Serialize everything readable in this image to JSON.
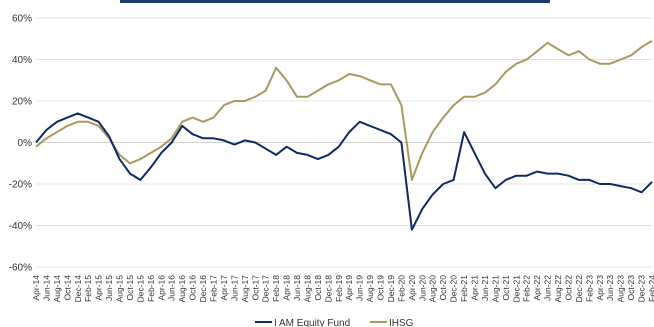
{
  "chart_data": {
    "type": "line",
    "title": "",
    "xlabel": "",
    "ylabel": "",
    "ylim": [
      -60,
      60
    ],
    "y_ticks": [
      "60%",
      "40%",
      "20%",
      "0%",
      "-20%",
      "-40%",
      "-60%"
    ],
    "grid": true,
    "legend_position": "bottom-center",
    "x": [
      "Apr-14",
      "Jun-14",
      "Aug-14",
      "Oct-14",
      "Dec-14",
      "Feb-15",
      "Apr-15",
      "Jun-15",
      "Aug-15",
      "Oct-15",
      "Dec-15",
      "Feb-16",
      "Apr-16",
      "Jun-16",
      "Aug-16",
      "Oct-16",
      "Dec-16",
      "Feb-17",
      "Apr-17",
      "Jun-17",
      "Aug-17",
      "Oct-17",
      "Dec-17",
      "Feb-18",
      "Apr-18",
      "Jun-18",
      "Aug-18",
      "Oct-18",
      "Dec-18",
      "Feb-19",
      "Apr-19",
      "Jun-19",
      "Aug-19",
      "Oct-19",
      "Dec-19",
      "Feb-20",
      "Apr-20",
      "Jun-20",
      "Aug-20",
      "Oct-20",
      "Dec-20",
      "Feb-21",
      "Apr-21",
      "Jun-21",
      "Aug-21",
      "Oct-21",
      "Dec-21",
      "Feb-22",
      "Apr-22",
      "Jun-22",
      "Aug-22",
      "Oct-22",
      "Dec-22",
      "Feb-23",
      "Apr-23",
      "Jun-23",
      "Aug-23",
      "Oct-23",
      "Dec-23",
      "Feb-24"
    ],
    "series": [
      {
        "name": "I AM Equity Fund",
        "color": "#0f2a66",
        "values": [
          0,
          6,
          10,
          12,
          14,
          12,
          10,
          3,
          -8,
          -15,
          -18,
          -12,
          -5,
          0,
          8,
          4,
          2,
          2,
          1,
          -1,
          1,
          0,
          -3,
          -6,
          -2,
          -5,
          -6,
          -8,
          -6,
          -2,
          5,
          10,
          8,
          6,
          4,
          0,
          -42,
          -32,
          -25,
          -20,
          -18,
          5,
          -5,
          -15,
          -22,
          -18,
          -16,
          -16,
          -14,
          -15,
          -15,
          -16,
          -18,
          -18,
          -20,
          -20,
          -21,
          -22,
          -24,
          -19
        ]
      },
      {
        "name": "IHSG",
        "color": "#a89a5e",
        "values": [
          -2,
          2,
          5,
          8,
          10,
          10,
          8,
          2,
          -6,
          -10,
          -8,
          -5,
          -2,
          2,
          10,
          12,
          10,
          12,
          18,
          20,
          20,
          22,
          25,
          36,
          30,
          22,
          22,
          25,
          28,
          30,
          33,
          32,
          30,
          28,
          28,
          18,
          -18,
          -5,
          5,
          12,
          18,
          22,
          22,
          24,
          28,
          34,
          38,
          40,
          44,
          48,
          45,
          42,
          44,
          40,
          38,
          38,
          40,
          42,
          46,
          49
        ]
      }
    ]
  }
}
